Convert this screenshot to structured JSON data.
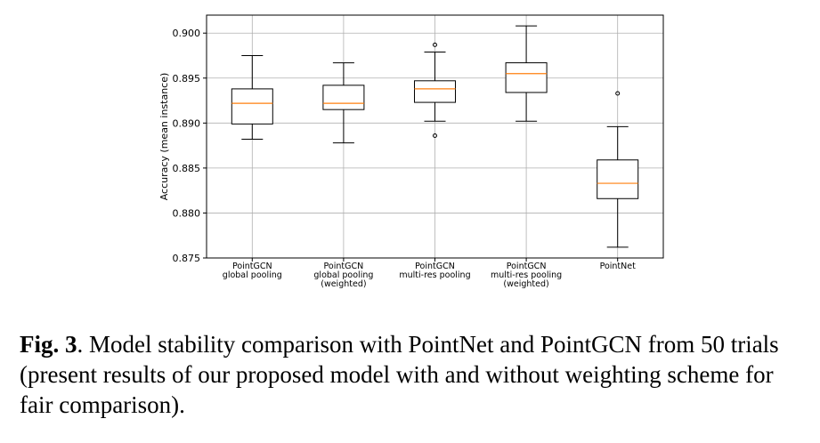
{
  "chart_data": {
    "type": "box",
    "ylabel": "Accuracy (mean instance)",
    "xlabel": "",
    "ylim": [
      0.875,
      0.902
    ],
    "yticks": [
      "0.875",
      "0.880",
      "0.885",
      "0.890",
      "0.895",
      "0.900"
    ],
    "grid": true,
    "median_color": "#ff7f0e",
    "categories": [
      [
        "PointGCN",
        "global pooling"
      ],
      [
        "PointGCN",
        "global pooling",
        "(weighted)"
      ],
      [
        "PointGCN",
        "multi-res pooling"
      ],
      [
        "PointGCN",
        "multi-res pooling",
        "(weighted)"
      ],
      [
        "PointNet"
      ]
    ],
    "boxes": [
      {
        "whisker_low": 0.8882,
        "q1": 0.8899,
        "median": 0.8922,
        "q3": 0.8938,
        "whisker_high": 0.8975,
        "outliers": []
      },
      {
        "whisker_low": 0.8878,
        "q1": 0.8915,
        "median": 0.8922,
        "q3": 0.8942,
        "whisker_high": 0.8967,
        "outliers": []
      },
      {
        "whisker_low": 0.8902,
        "q1": 0.8923,
        "median": 0.8938,
        "q3": 0.8947,
        "whisker_high": 0.8979,
        "outliers": [
          0.8886,
          0.8987
        ]
      },
      {
        "whisker_low": 0.8902,
        "q1": 0.8934,
        "median": 0.8955,
        "q3": 0.8967,
        "whisker_high": 0.9008,
        "outliers": []
      },
      {
        "whisker_low": 0.8762,
        "q1": 0.8816,
        "median": 0.8833,
        "q3": 0.8859,
        "whisker_high": 0.8896,
        "outliers": [
          0.8933
        ]
      }
    ]
  },
  "caption": {
    "label": "Fig. 3",
    "text": ". Model stability comparison with PointNet and PointGCN from 50 trials (present results of our proposed model with and without weighting scheme for fair comparison)."
  }
}
